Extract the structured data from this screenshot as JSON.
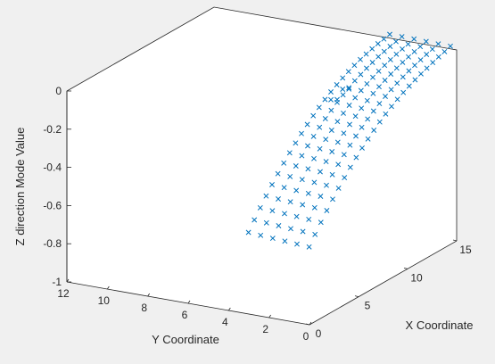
{
  "chart_data": {
    "type": "scatter",
    "projection": "3d",
    "marker": "x",
    "marker_color": "#0072BD",
    "background_color": "#f0f0f0",
    "plot_face_color": "#ffffff",
    "grid": false,
    "title": "",
    "xlabel": "X Coordinate",
    "ylabel": "Y Coordinate",
    "zlabel": "Z direction Mode Value",
    "xlim": [
      0,
      15
    ],
    "ylim": [
      0,
      12
    ],
    "zlim": [
      -1,
      0
    ],
    "xticks": [
      {
        "value": 0,
        "label": "0"
      },
      {
        "value": 5,
        "label": "5"
      },
      {
        "value": 10,
        "label": "10"
      },
      {
        "value": 15,
        "label": "15"
      }
    ],
    "yticks": [
      {
        "value": 0,
        "label": "0"
      },
      {
        "value": 2,
        "label": "2"
      },
      {
        "value": 4,
        "label": "4"
      },
      {
        "value": 6,
        "label": "6"
      },
      {
        "value": 8,
        "label": "8"
      },
      {
        "value": 10,
        "label": "10"
      },
      {
        "value": 12,
        "label": "12"
      }
    ],
    "zticks": [
      {
        "value": -1,
        "label": "-1"
      },
      {
        "value": -0.8,
        "label": "-0.8"
      },
      {
        "value": -0.6,
        "label": "-0.6"
      },
      {
        "value": -0.4,
        "label": "-0.4"
      },
      {
        "value": -0.2,
        "label": "-0.2"
      },
      {
        "value": 0,
        "label": "0"
      }
    ],
    "grid_x": [
      15.6,
      15.0,
      14.4,
      13.8,
      13.2,
      12.6,
      12.0,
      11.4,
      10.8,
      10.2,
      9.6,
      9.0,
      8.4,
      7.8,
      7.2,
      6.6,
      6.0,
      5.4,
      4.8,
      4.2,
      3.6,
      3.0,
      2.4,
      1.8,
      1.2
    ],
    "grid_y": [
      0.6,
      1.2,
      1.8,
      2.4,
      3.0,
      3.6
    ],
    "z_grid": [
      [
        -0.009,
        -0.008,
        -0.007,
        -0.005,
        -0.004,
        -0.003
      ],
      [
        -0.02,
        -0.018,
        -0.016,
        -0.014,
        -0.012,
        -0.01
      ],
      [
        -0.03,
        -0.028,
        -0.025,
        -0.022,
        -0.02,
        -0.017
      ],
      [
        -0.042,
        -0.039,
        -0.035,
        -0.032,
        -0.029,
        -0.026
      ],
      [
        -0.054,
        -0.05,
        -0.046,
        -0.043,
        -0.039,
        -0.036
      ],
      [
        -0.066,
        -0.062,
        -0.058,
        -0.055,
        -0.051,
        -0.047
      ],
      [
        -0.08,
        -0.076,
        -0.072,
        -0.068,
        -0.064,
        -0.06
      ],
      [
        -0.095,
        -0.091,
        -0.087,
        -0.083,
        -0.079,
        -0.075
      ],
      [
        -0.111,
        -0.107,
        -0.103,
        -0.099,
        -0.095,
        -0.091
      ],
      [
        -0.129,
        -0.125,
        -0.121,
        -0.117,
        -0.113,
        -0.109
      ],
      [
        -0.149,
        -0.145,
        -0.141,
        -0.137,
        -0.133,
        -0.129
      ],
      [
        -0.171,
        -0.167,
        -0.163,
        -0.159,
        -0.155,
        -0.151
      ],
      [
        -0.195,
        -0.191,
        -0.187,
        -0.183,
        -0.179,
        -0.175
      ],
      [
        -0.221,
        -0.217,
        -0.213,
        -0.209,
        -0.205,
        -0.201
      ],
      [
        -0.249,
        -0.245,
        -0.241,
        -0.237,
        -0.233,
        -0.229
      ],
      [
        -0.279,
        -0.275,
        -0.271,
        -0.267,
        -0.263,
        -0.259
      ],
      [
        -0.311,
        -0.307,
        -0.303,
        -0.299,
        -0.295,
        -0.291
      ],
      [
        -0.345,
        -0.341,
        -0.337,
        -0.333,
        -0.329,
        -0.325
      ],
      [
        -0.381,
        -0.377,
        -0.373,
        -0.369,
        -0.365,
        -0.361
      ],
      [
        -0.419,
        -0.415,
        -0.411,
        -0.407,
        -0.403,
        -0.399
      ],
      [
        -0.459,
        -0.455,
        -0.451,
        -0.447,
        -0.443,
        -0.439
      ],
      [
        -0.501,
        -0.497,
        -0.493,
        -0.489,
        -0.485,
        -0.481
      ],
      [
        -0.545,
        -0.541,
        -0.537,
        -0.533,
        -0.529,
        -0.525
      ],
      [
        -0.591,
        -0.587,
        -0.583,
        -0.579,
        -0.575,
        -0.571
      ],
      [
        -0.639,
        -0.635,
        -0.631,
        -0.627,
        -0.623,
        -0.619
      ]
    ],
    "extra_points": [
      {
        "x": 9.0,
        "y": 3.0,
        "z": -0.14
      },
      {
        "x": 9.6,
        "y": 3.6,
        "z": -0.17
      },
      {
        "x": 10.2,
        "y": 3.0,
        "z": -0.12
      },
      {
        "x": 10.8,
        "y": 3.6,
        "z": -0.15
      }
    ]
  }
}
